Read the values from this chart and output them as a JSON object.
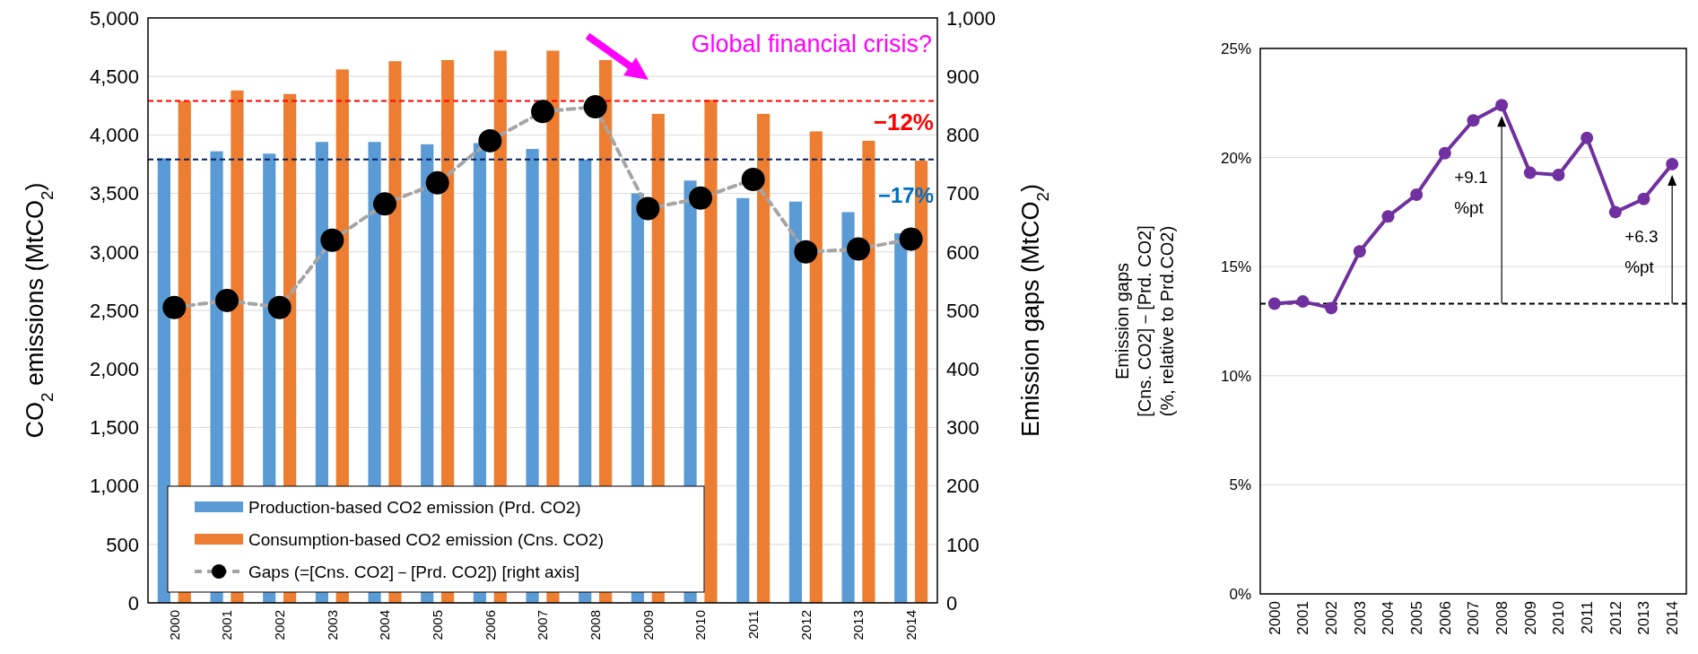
{
  "chart_data": [
    {
      "type": "bar",
      "categories": [
        "2000",
        "2001",
        "2002",
        "2003",
        "2004",
        "2005",
        "2006",
        "2007",
        "2008",
        "2009",
        "2010",
        "2011",
        "2012",
        "2013",
        "2014"
      ],
      "ylabel": "CO$_{2}$ emissions (MtCO$_{2}$)",
      "y2label": "Emission gaps (MtCO$_{2}$)",
      "ylim": [
        0,
        5000
      ],
      "yticks": [
        0,
        500,
        {
          "value": 1000,
          "label": "1,000"
        },
        {
          "value": 1500,
          "label": "1,500"
        },
        {
          "value": 2000,
          "label": "2,000"
        },
        {
          "value": 2500,
          "label": "2,500"
        },
        {
          "value": 3000,
          "label": "3,000"
        },
        {
          "value": 3500,
          "label": "3,500"
        },
        {
          "value": 4000,
          "label": "4,000"
        },
        {
          "value": 4500,
          "label": "4,500"
        },
        {
          "value": 5000,
          "label": "5,000"
        }
      ],
      "y2lim": [
        0,
        1000
      ],
      "y2ticks": [
        0,
        100,
        200,
        300,
        400,
        500,
        600,
        700,
        800,
        900,
        {
          "value": 1000,
          "label": "1,000"
        }
      ],
      "grid": "y",
      "legend": "bottom left",
      "series": [
        {
          "name": "Production-based CO2 emission (Prd. CO2)",
          "type": "bar",
          "color": "#5b9bd5",
          "values": [
            3800,
            3860,
            3840,
            3940,
            3940,
            3920,
            3930,
            3880,
            3790,
            3500,
            3610,
            3460,
            3430,
            3340,
            3160
          ]
        },
        {
          "name": "Consumption-based CO2 emission (Cns. CO2)",
          "type": "bar",
          "color": "#ed7d31",
          "values": [
            4290,
            4380,
            4350,
            4560,
            4630,
            4640,
            4720,
            4720,
            4640,
            4180,
            4300,
            4180,
            4030,
            3950,
            3780
          ]
        },
        {
          "name": "Gaps (=[Cns. CO2]－[Prd. CO2]) [right axis]",
          "type": "line",
          "axis": "y2",
          "color": "#a5a5a5",
          "marker": "circle",
          "line_style": "dashed",
          "values": [
            505,
            517,
            505,
            620,
            682,
            718,
            790,
            840,
            848,
            674,
            692,
            724,
            600,
            605,
            622
          ]
        }
      ],
      "ref_lines": [
        {
          "axis": "y",
          "value": 4290,
          "color": "#ff0000",
          "line_style": "dashed"
        },
        {
          "axis": "y",
          "value": 3790,
          "color": "#002060",
          "line_style": "dashed"
        }
      ],
      "annotations": [
        {
          "text": "−12%",
          "x": "2014",
          "y": 3780
        },
        {
          "text": "−17%",
          "x": "2014",
          "y": 3160
        },
        "Global financial crisis?"
      ]
    },
    {
      "type": "line",
      "categories": [
        "2000",
        "2001",
        "2002",
        "2003",
        "2004",
        "2005",
        "2006",
        "2007",
        "2008",
        "2009",
        "2010",
        "2011",
        "2012",
        "2013",
        "2014"
      ],
      "ylabel": "Emission gaps\n[Cns. CO2]－[Prd. CO2]\n(%, relative to Prd.CO2)",
      "ylim": [
        0,
        25
      ],
      "yticks": [
        {
          "value": 0,
          "label": "0%"
        },
        {
          "value": 5,
          "label": "5%"
        },
        {
          "value": 10,
          "label": "10%"
        },
        {
          "value": 15,
          "label": "15%"
        },
        {
          "value": 20,
          "label": "20%"
        },
        {
          "value": 25,
          "label": "25%"
        }
      ],
      "grid": "y",
      "marker": "circle",
      "line_style": "solid",
      "series": [
        {
          "color": "#7030a0",
          "values": [
            13.3,
            13.4,
            13.1,
            15.7,
            17.3,
            18.3,
            20.2,
            21.7,
            22.4,
            19.3,
            19.2,
            20.9,
            17.5,
            18.1,
            19.7
          ]
        }
      ],
      "ref_lines": [
        {
          "axis": "y",
          "value": 13.3,
          "color": "#000000",
          "line_style": "dashed"
        }
      ],
      "annotations": [
        "+9.1\n%pt",
        "+6.3\n%pt"
      ]
    }
  ]
}
